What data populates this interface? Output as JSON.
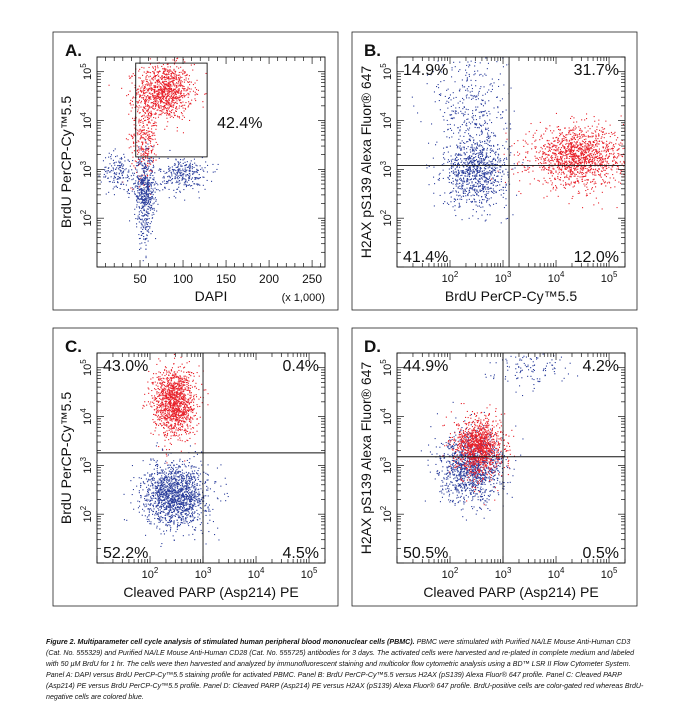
{
  "colors": {
    "brdu_positive": "#e8212a",
    "brdu_negative": "#2a3d9c",
    "axis": "#111111"
  },
  "caption": {
    "lead": "Figure 2. Multiparameter cell cycle analysis of stimulated human peripheral blood mononuclear cells (PBMC).",
    "body": "PBMC were stimulated with Purified NA/LE Mouse Anti-Human CD3 (Cat. No. 555329) and Purified NA/LE Mouse Anti-Human CD28 (Cat. No. 555725) antibodies for 3 days. The activated cells were harvested and re-plated in complete medium and labeled with 50 µM BrdU for 1 hr. The cells were then harvested and analyzed by immunofluorescent staining and multicolor flow cytometric analysis using a BD™ LSR II Flow Cytometer System. Panel A: DAPI versus BrdU PerCP-Cy™5.5 staining profile for activated PBMC. Panel B: BrdU PerCP-Cy™5.5 versus H2AX (pS139) Alexa Fluor® 647 profile. Panel C: Cleaved PARP (Asp214) PE versus BrdU PerCP-Cy™5.5 profile. Panel D: Cleaved PARP (Asp214) PE versus H2AX (pS139) Alexa Fluor® 647 profile. BrdU-positive cells are color-gated red whereas BrdU-negative cells are colored blue."
  },
  "chart_data": [
    {
      "panel": "A.",
      "type": "scatter",
      "xlabel": "DAPI",
      "xlabel_unit": "(x 1,000)",
      "ylabel": "BrdU  PerCP-Cy™5.5",
      "x_scale": "linear",
      "y_scale": "log",
      "xlim": [
        0,
        265
      ],
      "ylim": [
        10,
        200000
      ],
      "x_ticks": [
        "50",
        "100",
        "150",
        "200",
        "250"
      ],
      "y_ticks": [
        "10^2",
        "10^3",
        "10^4",
        "10^5"
      ],
      "gate": {
        "x": [
          45,
          128
        ],
        "y": [
          1800,
          150000
        ],
        "label": "42.4%"
      },
      "series": [
        {
          "color": "red",
          "population": "BrdU-positive",
          "clusters": [
            {
              "center": [
                78,
                40000
              ],
              "spread_x": 16,
              "spread_log10": 0.28,
              "n": 1000
            },
            {
              "center": [
                55,
                5000
              ],
              "spread_x": 8,
              "spread_log10": 0.45,
              "n": 330
            }
          ]
        },
        {
          "color": "blue",
          "population": "BrdU-negative",
          "clusters": [
            {
              "center": [
                55,
                400
              ],
              "spread_x": 6,
              "spread_log10": 0.35,
              "n": 500
            },
            {
              "center": [
                100,
                800
              ],
              "spread_x": 14,
              "spread_log10": 0.18,
              "n": 280
            },
            {
              "center": [
                25,
                900
              ],
              "spread_x": 10,
              "spread_log10": 0.2,
              "n": 160
            },
            {
              "center": [
                55,
                60
              ],
              "spread_x": 3,
              "spread_log10": 0.25,
              "n": 60
            }
          ]
        }
      ]
    },
    {
      "panel": "B.",
      "type": "scatter",
      "xlabel": "BrdU  PerCP-Cy™5.5",
      "ylabel": "H2AX pS139 Alexa Fluor® 647",
      "x_scale": "log",
      "y_scale": "log",
      "xlim": [
        10,
        200000
      ],
      "ylim": [
        10,
        200000
      ],
      "x_ticks": [
        "10^2",
        "10^3",
        "10^4",
        "10^5"
      ],
      "y_ticks": [
        "10^2",
        "10^3",
        "10^4",
        "10^5"
      ],
      "quadrant_split": {
        "x": 1300,
        "y": 1200
      },
      "quadrant_labels": {
        "top_left": "14.9%",
        "top_right": "31.7%",
        "bottom_left": "41.4%",
        "bottom_right": "12.0%"
      },
      "series": [
        {
          "color": "red",
          "population": "BrdU-positive",
          "clusters": [
            {
              "center": [
                25000,
                1800
              ],
              "spread_log10_x": 0.45,
              "spread_log10_y": 0.3,
              "n": 1400
            }
          ]
        },
        {
          "color": "blue",
          "population": "BrdU-negative",
          "clusters": [
            {
              "center": [
                300,
                900
              ],
              "spread_log10_x": 0.3,
              "spread_log10_y": 0.35,
              "n": 900
            },
            {
              "center": [
                250,
                20000
              ],
              "spread_log10_x": 0.35,
              "spread_log10_y": 0.6,
              "n": 350
            }
          ]
        }
      ]
    },
    {
      "panel": "C.",
      "type": "scatter",
      "xlabel": "Cleaved PARP (Asp214)  PE",
      "ylabel": "BrdU  PerCP-Cy™5.5",
      "x_scale": "log",
      "y_scale": "log",
      "xlim": [
        10,
        200000
      ],
      "ylim": [
        10,
        200000
      ],
      "x_ticks": [
        "10^2",
        "10^3",
        "10^4",
        "10^5"
      ],
      "y_ticks": [
        "10^2",
        "10^3",
        "10^4",
        "10^5"
      ],
      "quadrant_split": {
        "x": 1000,
        "y": 1800
      },
      "quadrant_labels": {
        "top_left": "43.0%",
        "top_right": "0.4%",
        "bottom_left": "52.2%",
        "bottom_right": "4.5%"
      },
      "series": [
        {
          "color": "red",
          "population": "BrdU-positive",
          "clusters": [
            {
              "center": [
                280,
                20000
              ],
              "spread_log10_x": 0.2,
              "spread_log10_y": 0.35,
              "n": 1300
            }
          ]
        },
        {
          "color": "blue",
          "population": "BrdU-negative",
          "clusters": [
            {
              "center": [
                300,
                250
              ],
              "spread_log10_x": 0.3,
              "spread_log10_y": 0.32,
              "n": 1500
            }
          ]
        }
      ]
    },
    {
      "panel": "D.",
      "type": "scatter",
      "xlabel": "Cleaved PARP (Asp214)  PE",
      "ylabel": "H2AX pS139 Alexa Fluor® 647",
      "x_scale": "log",
      "y_scale": "log",
      "xlim": [
        10,
        200000
      ],
      "ylim": [
        10,
        200000
      ],
      "x_ticks": [
        "10^2",
        "10^3",
        "10^4",
        "10^5"
      ],
      "y_ticks": [
        "10^2",
        "10^3",
        "10^4",
        "10^5"
      ],
      "quadrant_split": {
        "x": 1000,
        "y": 1500
      },
      "quadrant_labels": {
        "top_left": "44.9%",
        "top_right": "4.2%",
        "bottom_left": "50.5%",
        "bottom_right": "0.5%"
      },
      "series": [
        {
          "color": "blue",
          "population": "BrdU-negative",
          "clusters": [
            {
              "center": [
                250,
                900
              ],
              "spread_log10_x": 0.3,
              "spread_log10_y": 0.35,
              "n": 1200
            },
            {
              "center": [
                3000,
                100000
              ],
              "spread_log10_x": 0.4,
              "spread_log10_y": 0.2,
              "n": 120
            }
          ]
        },
        {
          "color": "red",
          "population": "BrdU-positive",
          "clusters": [
            {
              "center": [
                350,
                2500
              ],
              "spread_log10_x": 0.22,
              "spread_log10_y": 0.3,
              "n": 1200
            }
          ]
        }
      ]
    }
  ]
}
